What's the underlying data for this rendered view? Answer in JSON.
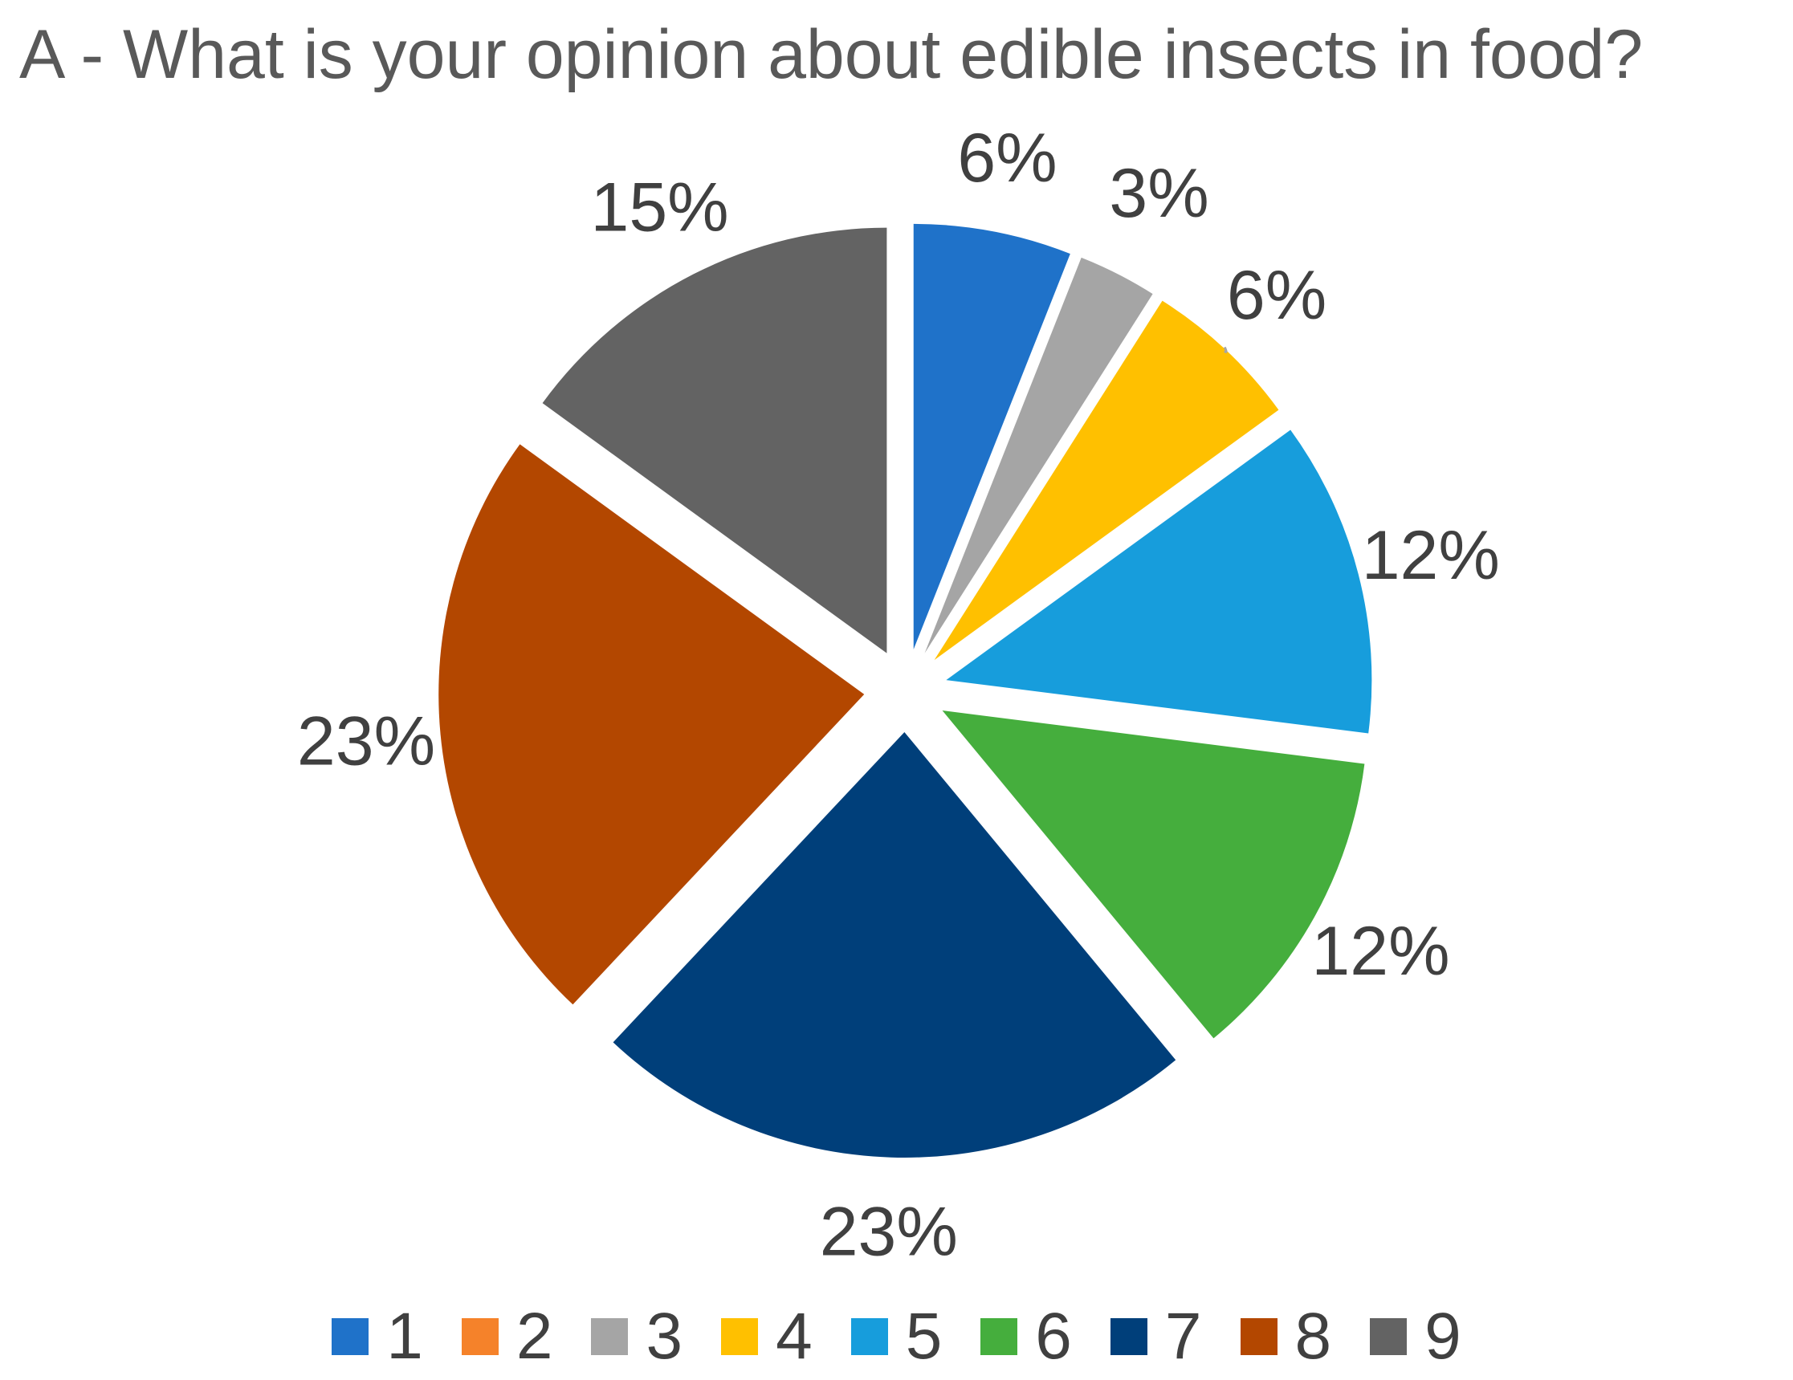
{
  "chart_data": {
    "type": "pie",
    "title": "A - What is your opinion about edible insects in food?",
    "categories": [
      "1",
      "2",
      "3",
      "4",
      "5",
      "6",
      "7",
      "8",
      "9"
    ],
    "values": [
      6,
      0,
      3,
      6,
      12,
      12,
      23,
      23,
      15
    ],
    "labels": [
      "6%",
      "",
      "3%",
      "6%",
      "12%",
      "12%",
      "23%",
      "23%",
      "15%"
    ],
    "colors": [
      "#1F72C9",
      "#F5822A",
      "#A5A5A5",
      "#FFC000",
      "#179DDC",
      "#45AE3D",
      "#003F7A",
      "#B34700",
      "#636363"
    ],
    "legend_position": "bottom",
    "exploded": true
  }
}
